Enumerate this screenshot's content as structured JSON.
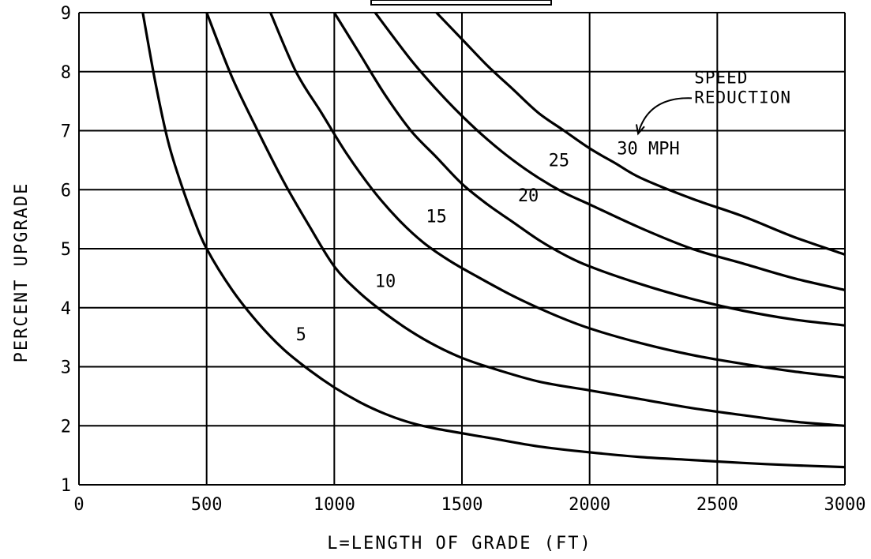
{
  "chart_data": {
    "type": "line",
    "xlabel": "L=LENGTH OF GRADE (FT)",
    "ylabel": "PERCENT UPGRADE",
    "xlim": [
      0,
      3000
    ],
    "ylim": [
      1,
      9
    ],
    "x_ticks": [
      0,
      500,
      1000,
      1500,
      2000,
      2500,
      3000
    ],
    "y_ticks": [
      1,
      2,
      3,
      4,
      5,
      6,
      7,
      8,
      9
    ],
    "x_tick_labels": [
      "0",
      "500",
      "1000",
      "1500",
      "2000",
      "2500",
      "3000"
    ],
    "y_tick_labels": [
      "1",
      "2",
      "3",
      "4",
      "5",
      "6",
      "7",
      "8",
      "9"
    ],
    "grid": true,
    "series": [
      {
        "name": "5",
        "points": [
          [
            250,
            9.0
          ],
          [
            300,
            7.8
          ],
          [
            350,
            6.8
          ],
          [
            400,
            6.1
          ],
          [
            450,
            5.5
          ],
          [
            500,
            5.0
          ],
          [
            600,
            4.3
          ],
          [
            700,
            3.75
          ],
          [
            800,
            3.3
          ],
          [
            900,
            2.95
          ],
          [
            1000,
            2.65
          ],
          [
            1100,
            2.4
          ],
          [
            1200,
            2.2
          ],
          [
            1300,
            2.05
          ],
          [
            1400,
            1.95
          ],
          [
            1600,
            1.8
          ],
          [
            1800,
            1.65
          ],
          [
            2000,
            1.55
          ],
          [
            2200,
            1.47
          ],
          [
            2400,
            1.42
          ],
          [
            2600,
            1.37
          ],
          [
            2800,
            1.33
          ],
          [
            3000,
            1.3
          ]
        ]
      },
      {
        "name": "10",
        "points": [
          [
            500,
            9.0
          ],
          [
            600,
            7.9
          ],
          [
            700,
            7.0
          ],
          [
            800,
            6.15
          ],
          [
            900,
            5.4
          ],
          [
            1000,
            4.7
          ],
          [
            1100,
            4.25
          ],
          [
            1200,
            3.9
          ],
          [
            1300,
            3.6
          ],
          [
            1400,
            3.35
          ],
          [
            1500,
            3.15
          ],
          [
            1600,
            3.0
          ],
          [
            1800,
            2.75
          ],
          [
            2000,
            2.6
          ],
          [
            2200,
            2.45
          ],
          [
            2400,
            2.3
          ],
          [
            2600,
            2.18
          ],
          [
            2800,
            2.07
          ],
          [
            3000,
            2.0
          ]
        ]
      },
      {
        "name": "15",
        "points": [
          [
            750,
            9.0
          ],
          [
            850,
            8.0
          ],
          [
            950,
            7.3
          ],
          [
            1050,
            6.6
          ],
          [
            1150,
            6.0
          ],
          [
            1250,
            5.5
          ],
          [
            1350,
            5.1
          ],
          [
            1450,
            4.8
          ],
          [
            1550,
            4.55
          ],
          [
            1700,
            4.2
          ],
          [
            1850,
            3.9
          ],
          [
            2000,
            3.65
          ],
          [
            2200,
            3.4
          ],
          [
            2400,
            3.2
          ],
          [
            2600,
            3.05
          ],
          [
            2800,
            2.92
          ],
          [
            3000,
            2.82
          ]
        ]
      },
      {
        "name": "20",
        "points": [
          [
            1000,
            9.0
          ],
          [
            1100,
            8.3
          ],
          [
            1200,
            7.6
          ],
          [
            1300,
            7.0
          ],
          [
            1400,
            6.55
          ],
          [
            1500,
            6.1
          ],
          [
            1600,
            5.75
          ],
          [
            1700,
            5.45
          ],
          [
            1800,
            5.15
          ],
          [
            1900,
            4.9
          ],
          [
            2000,
            4.7
          ],
          [
            2200,
            4.4
          ],
          [
            2400,
            4.15
          ],
          [
            2600,
            3.95
          ],
          [
            2800,
            3.8
          ],
          [
            3000,
            3.7
          ]
        ]
      },
      {
        "name": "25",
        "points": [
          [
            1160,
            9.0
          ],
          [
            1300,
            8.2
          ],
          [
            1400,
            7.7
          ],
          [
            1500,
            7.25
          ],
          [
            1600,
            6.85
          ],
          [
            1700,
            6.5
          ],
          [
            1800,
            6.2
          ],
          [
            1900,
            5.95
          ],
          [
            2000,
            5.75
          ],
          [
            2200,
            5.35
          ],
          [
            2400,
            5.0
          ],
          [
            2600,
            4.75
          ],
          [
            2800,
            4.5
          ],
          [
            3000,
            4.3
          ]
        ]
      },
      {
        "name": "30 MPH",
        "points": [
          [
            1400,
            9.0
          ],
          [
            1500,
            8.55
          ],
          [
            1600,
            8.1
          ],
          [
            1700,
            7.7
          ],
          [
            1800,
            7.3
          ],
          [
            1900,
            7.0
          ],
          [
            2000,
            6.7
          ],
          [
            2100,
            6.45
          ],
          [
            2200,
            6.2
          ],
          [
            2400,
            5.85
          ],
          [
            2600,
            5.55
          ],
          [
            2800,
            5.2
          ],
          [
            3000,
            4.9
          ]
        ]
      }
    ],
    "curve_labels": [
      {
        "text": "5",
        "x": 870,
        "y": 3.45
      },
      {
        "text": "10",
        "x": 1200,
        "y": 4.35
      },
      {
        "text": "15",
        "x": 1400,
        "y": 5.45
      },
      {
        "text": "20",
        "x": 1760,
        "y": 5.8
      },
      {
        "text": "25",
        "x": 1880,
        "y": 6.4
      },
      {
        "text": "30 MPH",
        "x": 2230,
        "y": 6.6
      }
    ],
    "annotation": {
      "text_lines": [
        "SPEED",
        "REDUCTION"
      ],
      "x": 2410,
      "y": 7.8,
      "arrow_from": [
        2400,
        7.55
      ],
      "arrow_to": [
        2190,
        6.95
      ]
    }
  }
}
